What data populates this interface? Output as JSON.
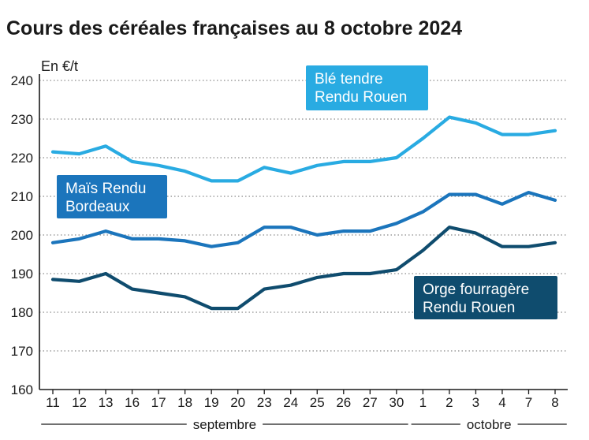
{
  "title": "Cours des céréales françaises au 8 octobre 2024",
  "chart_data": {
    "type": "line",
    "unit_label": "En €/t",
    "ylim": [
      160,
      240
    ],
    "yticks": [
      160,
      170,
      180,
      190,
      200,
      210,
      220,
      230,
      240
    ],
    "grid": "horizontal dotted",
    "categories": [
      "11",
      "12",
      "13",
      "16",
      "17",
      "18",
      "19",
      "20",
      "23",
      "24",
      "25",
      "26",
      "27",
      "30",
      "1",
      "2",
      "3",
      "4",
      "7",
      "8"
    ],
    "months": [
      {
        "label": "septembre",
        "from": 0,
        "to": 13
      },
      {
        "label": "octobre",
        "from": 14,
        "to": 19
      }
    ],
    "series": [
      {
        "name_lines": [
          "Blé tendre",
          "Rendu Rouen"
        ],
        "color": "#29abe2",
        "values": [
          221.5,
          221,
          223,
          219,
          218,
          216.5,
          214,
          214,
          217.5,
          216,
          218,
          219,
          219,
          220,
          225,
          230.5,
          229,
          226,
          226,
          227
        ]
      },
      {
        "name_lines": [
          "Maïs Rendu",
          "Bordeaux"
        ],
        "color": "#1b75bc",
        "values": [
          198,
          199,
          201,
          199,
          199,
          198.5,
          197,
          198,
          202,
          202,
          200,
          201,
          201,
          203,
          206,
          210.5,
          210.5,
          208,
          211,
          209
        ]
      },
      {
        "name_lines": [
          "Orge fourragère",
          "Rendu Rouen"
        ],
        "color": "#0f4c6e",
        "values": [
          188.5,
          188,
          190,
          186,
          185,
          184,
          181,
          181,
          186,
          187,
          189,
          190,
          190,
          191,
          196,
          202,
          200.5,
          197,
          197,
          198
        ]
      }
    ]
  }
}
